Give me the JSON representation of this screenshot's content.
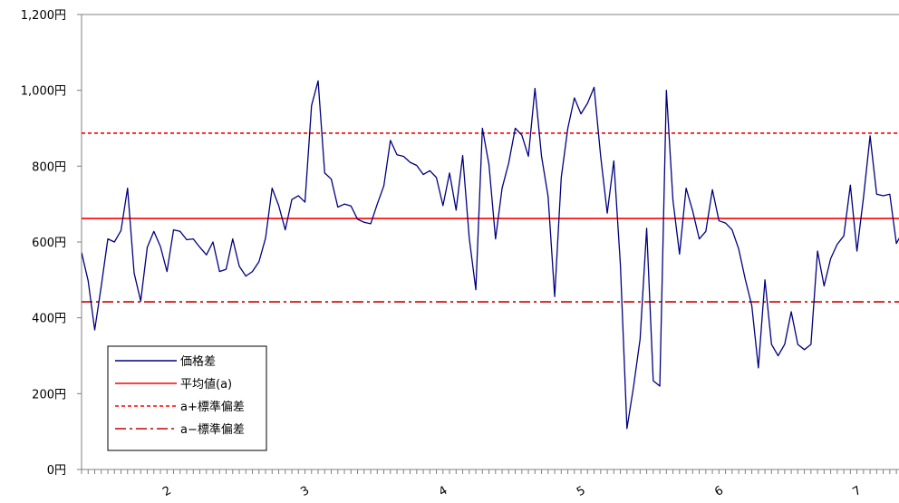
{
  "chart_data": {
    "type": "line",
    "title": "",
    "xlabel": "",
    "ylabel": "",
    "ylim": [
      0,
      1200
    ],
    "y_ticks": [
      0,
      200,
      400,
      600,
      800,
      1000,
      1200
    ],
    "y_unit_suffix": "円",
    "y_tick_labels": [
      "0円",
      "200円",
      "400円",
      "600円",
      "800円",
      "1,000円",
      "1,200円"
    ],
    "x_month_labels": [
      {
        "label": "2",
        "index": 13
      },
      {
        "label": "3",
        "index": 34
      },
      {
        "label": "4",
        "index": 55
      },
      {
        "label": "5",
        "index": 76
      },
      {
        "label": "6",
        "index": 97
      },
      {
        "label": "7",
        "index": 118
      }
    ],
    "series": [
      {
        "name": "価格差",
        "color": "#000080",
        "style": "solid",
        "values": [
          572,
          498,
          368,
          484,
          608,
          600,
          630,
          742,
          518,
          444,
          586,
          628,
          588,
          522,
          632,
          628,
          606,
          608,
          586,
          566,
          600,
          522,
          528,
          608,
          536,
          510,
          522,
          548,
          610,
          742,
          696,
          632,
          712,
          722,
          705,
          960,
          1025,
          782,
          766,
          692,
          700,
          695,
          660,
          652,
          648,
          700,
          748,
          868,
          830,
          826,
          810,
          802,
          778,
          788,
          770,
          696,
          782,
          684,
          828,
          610,
          474,
          900,
          804,
          608,
          742,
          808,
          900,
          882,
          826,
          1005,
          826,
          720,
          456,
          770,
          900,
          980,
          938,
          966,
          1008,
          826,
          676,
          814,
          540,
          108,
          218,
          344,
          636,
          234,
          220,
          1000,
          710,
          568,
          742,
          682,
          608,
          628,
          738,
          656,
          650,
          632,
          582,
          502,
          432,
          268,
          500,
          330,
          300,
          330,
          416,
          330,
          316,
          330,
          576,
          484,
          556,
          594,
          616,
          750,
          576,
          718,
          880,
          726,
          722,
          726,
          596,
          628
        ]
      },
      {
        "name": "平均値(a)",
        "color": "#ff0000",
        "style": "solid",
        "value": 662
      },
      {
        "name": "a+標準偏差",
        "color": "#ff0000",
        "style": "dotted",
        "value": 887
      },
      {
        "name": "a−標準偏差",
        "color": "#cc0000",
        "style": "dashdot",
        "value": 442
      }
    ],
    "legend_position": "bottom-left",
    "grid": false
  }
}
